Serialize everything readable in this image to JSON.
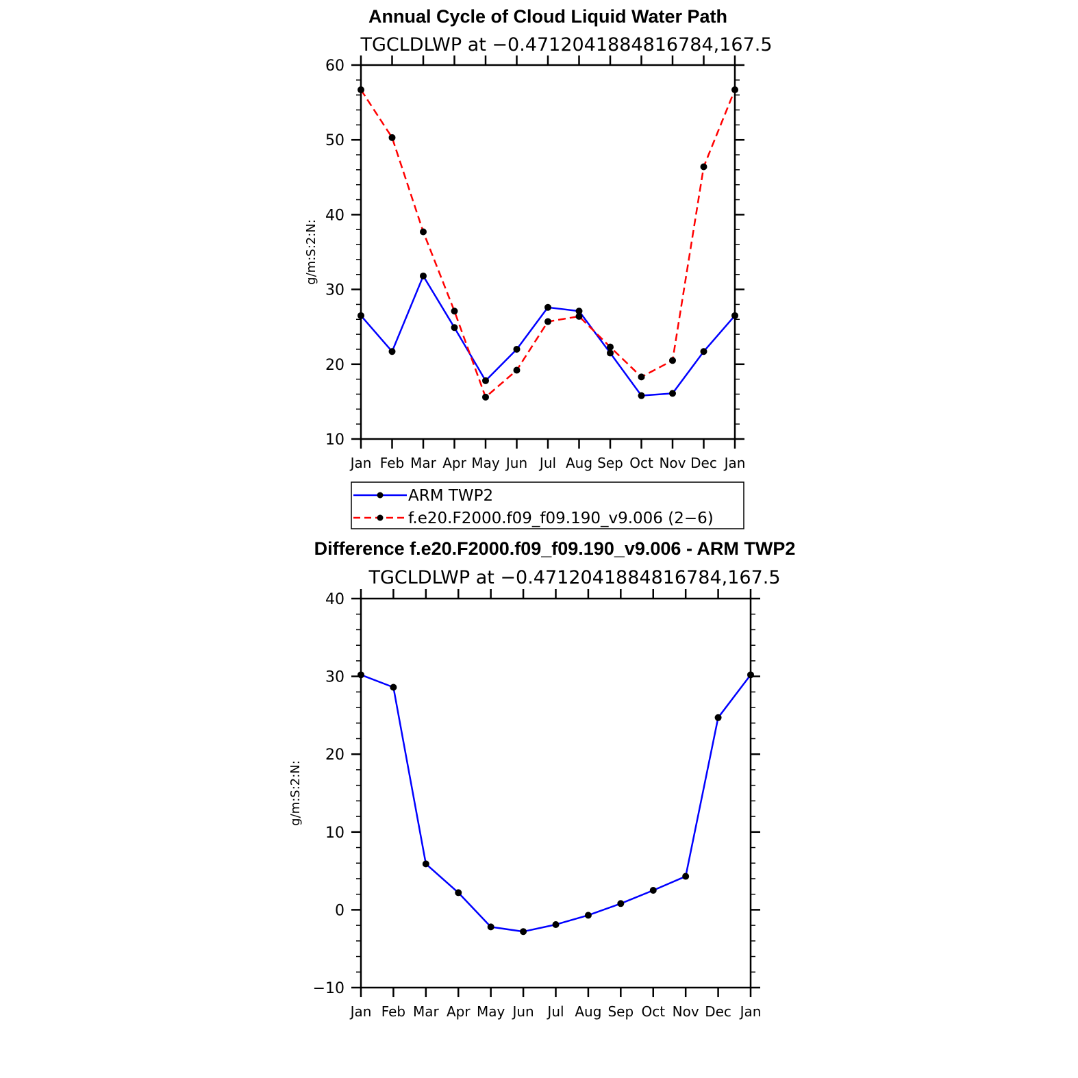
{
  "chart_data": [
    {
      "type": "line",
      "title": "Annual Cycle of Cloud Liquid Water Path",
      "subtitle": "TGCLDLWP at −0.4712041884816784,167.5",
      "ylabel": "g/m:S:2:N:",
      "xlabel": "",
      "ylim": [
        10,
        60
      ],
      "yticks": [
        10,
        20,
        30,
        40,
        50,
        60
      ],
      "categories": [
        "Jan",
        "Feb",
        "Mar",
        "Apr",
        "May",
        "Jun",
        "Jul",
        "Aug",
        "Sep",
        "Oct",
        "Nov",
        "Dec",
        "Jan"
      ],
      "grid": false,
      "legend_position": "bottom",
      "series": [
        {
          "name": "ARM TWP2",
          "color": "#0000ff",
          "dash": "solid",
          "values": [
            26.5,
            21.7,
            31.8,
            24.9,
            17.8,
            22.0,
            27.6,
            27.1,
            21.5,
            15.8,
            16.1,
            21.7,
            26.5
          ]
        },
        {
          "name": "f.e20.F2000.f09_f09.190_v9.006 (2−6)",
          "color": "#ff0000",
          "dash": "dashed",
          "values": [
            56.7,
            50.3,
            37.7,
            27.1,
            15.6,
            19.2,
            25.7,
            26.4,
            22.3,
            18.3,
            20.5,
            46.4,
            56.7
          ]
        }
      ]
    },
    {
      "type": "line",
      "title": "Difference f.e20.F2000.f09_f09.190_v9.006 - ARM TWP2",
      "subtitle": "TGCLDLWP at −0.4712041884816784,167.5",
      "ylabel": "g/m:S:2:N:",
      "xlabel": "",
      "ylim": [
        -10,
        40
      ],
      "yticks": [
        -10,
        0,
        10,
        20,
        30,
        40
      ],
      "categories": [
        "Jan",
        "Feb",
        "Mar",
        "Apr",
        "May",
        "Jun",
        "Jul",
        "Aug",
        "Sep",
        "Oct",
        "Nov",
        "Dec",
        "Jan"
      ],
      "grid": false,
      "series": [
        {
          "color": "#0000ff",
          "dash": "solid",
          "values": [
            30.2,
            28.6,
            5.9,
            2.2,
            -2.2,
            -2.8,
            -1.9,
            -0.7,
            0.8,
            2.5,
            4.3,
            24.7,
            30.2
          ]
        }
      ]
    }
  ]
}
